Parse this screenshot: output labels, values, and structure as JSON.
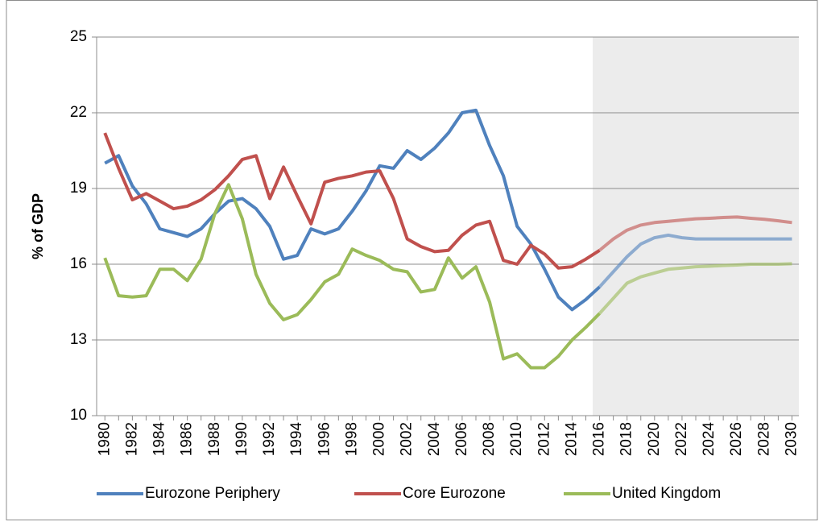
{
  "chart_data": {
    "type": "line",
    "y_label": "% of GDP",
    "x": [
      1980,
      1981,
      1982,
      1983,
      1984,
      1985,
      1986,
      1987,
      1988,
      1989,
      1990,
      1991,
      1992,
      1993,
      1994,
      1995,
      1996,
      1997,
      1998,
      1999,
      2000,
      2001,
      2002,
      2003,
      2004,
      2005,
      2006,
      2007,
      2008,
      2009,
      2010,
      2011,
      2012,
      2013,
      2014,
      2015,
      2016,
      2017,
      2018,
      2019,
      2020,
      2021,
      2022,
      2023,
      2024,
      2025,
      2026,
      2027,
      2028,
      2029,
      2030
    ],
    "xlim": [
      1979.4,
      2030.5
    ],
    "xticks": [
      1980,
      1982,
      1984,
      1986,
      1988,
      1990,
      1992,
      1994,
      1996,
      1998,
      2000,
      2002,
      2004,
      2006,
      2008,
      2010,
      2012,
      2014,
      2016,
      2018,
      2020,
      2022,
      2024,
      2026,
      2028,
      2030
    ],
    "ylim": [
      10,
      25
    ],
    "yticks": [
      10,
      13,
      16,
      19,
      22,
      25
    ],
    "grid": true,
    "forecast_start": 2016,
    "legend": "bottom",
    "series": [
      {
        "name": "Eurozone Periphery",
        "color": "#4f81bd",
        "values": [
          20.0,
          20.3,
          19.1,
          18.4,
          17.4,
          17.25,
          17.1,
          17.4,
          18.0,
          18.5,
          18.6,
          18.2,
          17.5,
          16.2,
          16.35,
          17.4,
          17.2,
          17.4,
          18.1,
          18.9,
          19.9,
          19.8,
          20.5,
          20.15,
          20.6,
          21.2,
          22.0,
          22.1,
          20.7,
          19.5,
          17.5,
          16.8,
          15.8,
          14.7,
          14.2,
          14.6,
          15.1,
          15.7,
          16.3,
          16.8,
          17.05,
          17.15,
          17.05,
          17.0,
          17.0,
          17.0,
          17.0,
          17.0,
          17.0,
          17.0,
          17.0
        ]
      },
      {
        "name": "Core Eurozone",
        "color": "#c0504d",
        "values": [
          21.2,
          19.8,
          18.55,
          18.8,
          18.5,
          18.2,
          18.3,
          18.55,
          18.95,
          19.5,
          20.15,
          20.3,
          18.6,
          19.85,
          18.7,
          17.6,
          19.25,
          19.4,
          19.5,
          19.65,
          19.7,
          18.6,
          17.0,
          16.7,
          16.5,
          16.55,
          17.15,
          17.55,
          17.7,
          16.15,
          16.0,
          16.75,
          16.4,
          15.85,
          15.9,
          16.2,
          16.55,
          17.0,
          17.35,
          17.55,
          17.65,
          17.7,
          17.75,
          17.8,
          17.82,
          17.85,
          17.87,
          17.82,
          17.78,
          17.72,
          17.65
        ]
      },
      {
        "name": "United Kingdom",
        "color": "#9bbb59",
        "values": [
          16.25,
          14.75,
          14.7,
          14.75,
          15.8,
          15.8,
          15.35,
          16.2,
          18.0,
          19.15,
          17.8,
          15.6,
          14.45,
          13.8,
          14.0,
          14.6,
          15.3,
          15.6,
          16.6,
          16.35,
          16.15,
          15.8,
          15.7,
          14.9,
          15.0,
          16.25,
          15.45,
          15.9,
          14.5,
          12.25,
          12.45,
          11.9,
          11.9,
          12.35,
          13.0,
          13.5,
          14.05,
          14.65,
          15.25,
          15.5,
          15.65,
          15.8,
          15.85,
          15.9,
          15.92,
          15.95,
          15.97,
          16.0,
          16.0,
          16.0,
          16.02
        ]
      }
    ]
  }
}
